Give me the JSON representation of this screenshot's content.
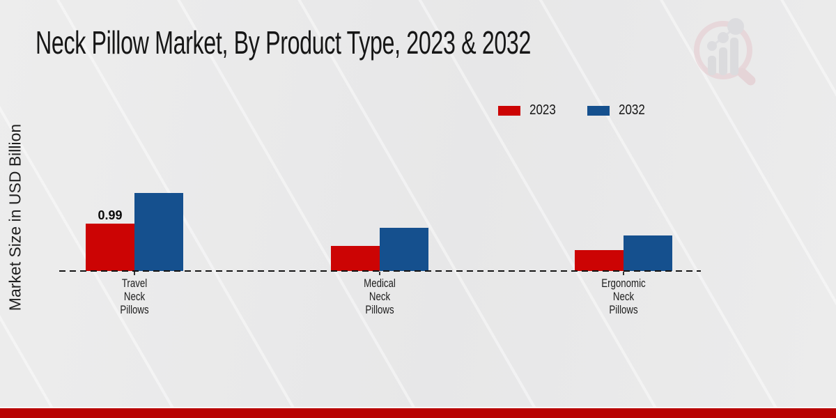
{
  "page": {
    "title": "Neck Pillow Market, By Product Type, 2023 & 2032",
    "ylabel": "Market Size in USD Billion"
  },
  "colors": {
    "series_2023": "#cc0404",
    "series_2032": "#15508e",
    "footer_band": "#b80404",
    "background": "#e9e9e9",
    "baseline": "#141414"
  },
  "watermark": {
    "icon": "magnifier-bar-chart-logo"
  },
  "chart_data": {
    "type": "bar",
    "title": "Neck Pillow Market, By Product Type, 2023 & 2032",
    "xlabel": "",
    "ylabel": "Market Size in USD Billion",
    "categories": [
      "Travel\nNeck\nPillows",
      "Medical\nNeck\nPillows",
      "Ergonomic\nNeck\nPillows"
    ],
    "series": [
      {
        "name": "2023",
        "color": "#cc0404",
        "values": [
          0.99,
          0.52,
          0.44
        ],
        "labels": [
          "0.99",
          "",
          ""
        ]
      },
      {
        "name": "2032",
        "color": "#15508e",
        "values": [
          1.64,
          0.9,
          0.75
        ],
        "labels": [
          "",
          "",
          ""
        ]
      }
    ],
    "ylim": [
      0,
      2
    ],
    "grid": false,
    "legend_position": "top-right",
    "axis_line_style": "dashed-baseline-only"
  }
}
